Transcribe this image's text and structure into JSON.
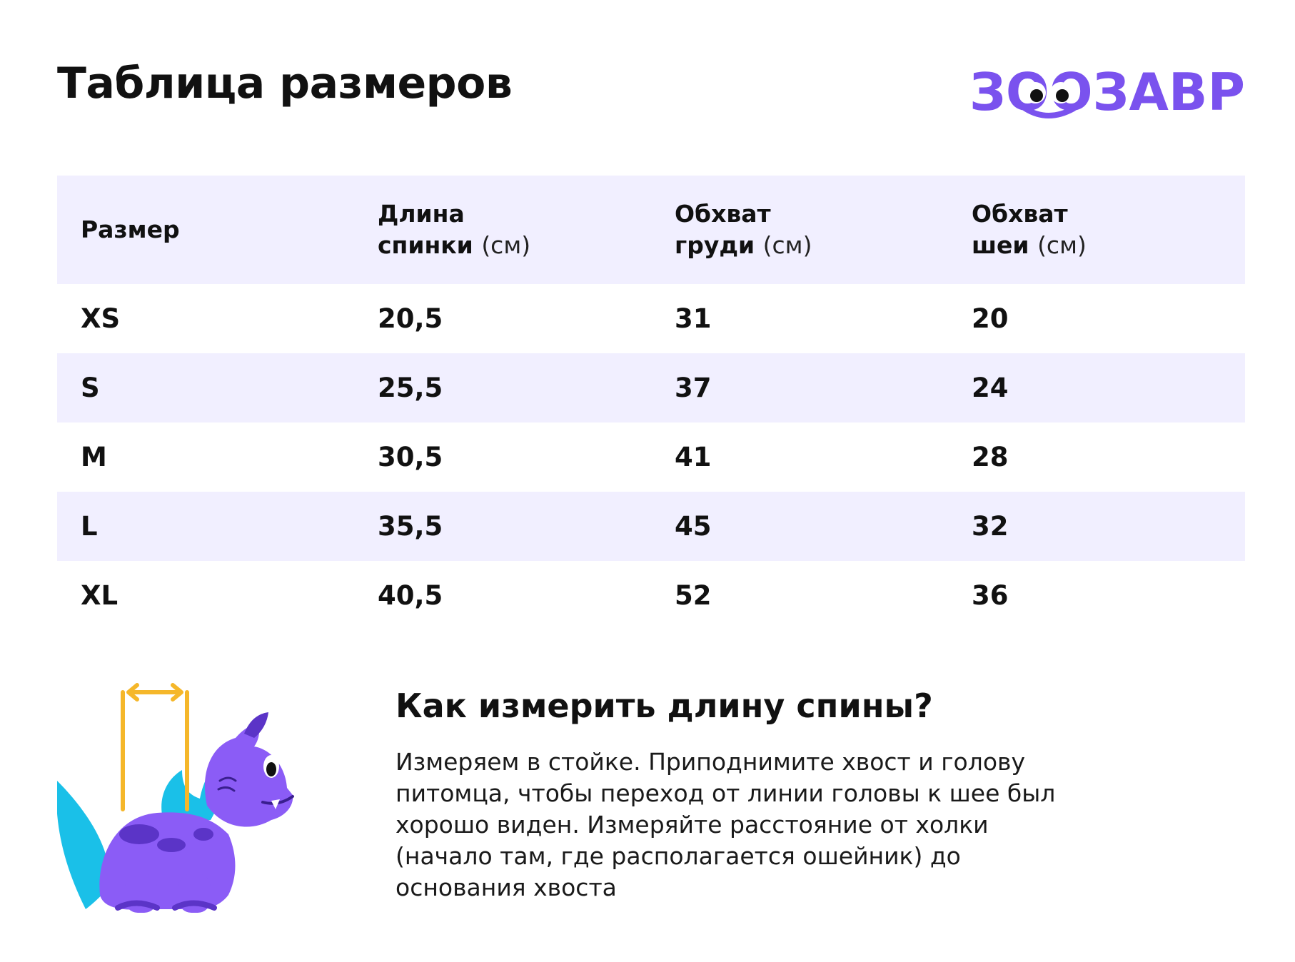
{
  "header": {
    "title": "Таблица размеров",
    "logo_text": "ЗООЗАВР"
  },
  "colors": {
    "brand_purple": "#7a52ee",
    "row_tint": "#f1efff",
    "measure_yellow": "#f5b72a",
    "dino_body": "#8b5cf6",
    "dino_spikes": "#1ac0e8"
  },
  "table": {
    "columns": [
      {
        "label": "Размер",
        "unit": ""
      },
      {
        "label_line1": "Длина",
        "label_line2": "спинки",
        "unit": "(см)"
      },
      {
        "label_line1": "Обхват",
        "label_line2": "груди",
        "unit": "(см)"
      },
      {
        "label_line1": "Обхват",
        "label_line2": "шеи",
        "unit": "(см)"
      }
    ],
    "rows": [
      [
        "XS",
        "20,5",
        "31",
        "20"
      ],
      [
        "S",
        "25,5",
        "37",
        "24"
      ],
      [
        "M",
        "30,5",
        "41",
        "28"
      ],
      [
        "L",
        "35,5",
        "45",
        "32"
      ],
      [
        "XL",
        "40,5",
        "52",
        "36"
      ]
    ]
  },
  "howto": {
    "heading": "Как измерить длину спины?",
    "lines": [
      "Измеряем в стойке. Приподнимите хвост и голову",
      "питомца, чтобы переход от линии головы к шее был",
      "хорошо виден. Измеряйте расстояние от холки",
      "(начало там, где располагается ошейник) до",
      "основания хвоста"
    ]
  },
  "illustration": {
    "icon": "dino-mascot-icon"
  }
}
